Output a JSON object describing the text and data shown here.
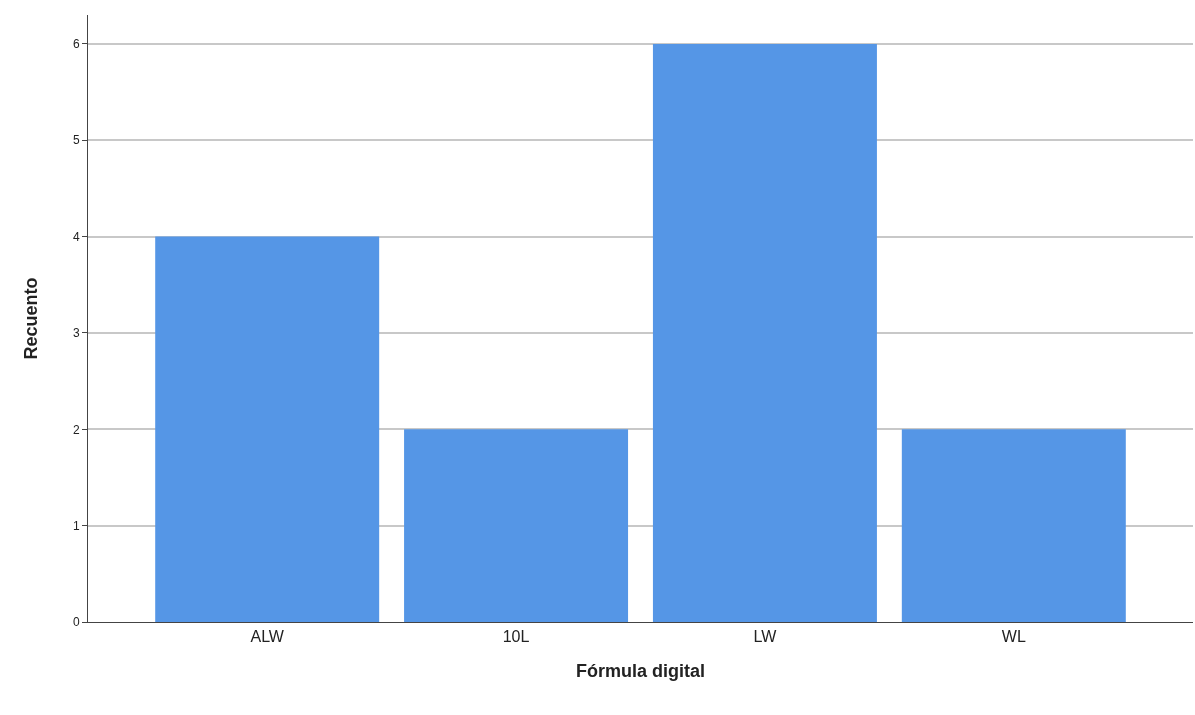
{
  "chart_data": {
    "type": "bar",
    "xlabel": "Fórmula digital",
    "ylabel": "Recuento",
    "categories": [
      "ALW",
      "10L",
      "LW",
      "WL"
    ],
    "values": [
      4,
      2,
      6,
      2
    ],
    "color": "#5596e6",
    "ylim": [
      0,
      6.3
    ],
    "yticks": [
      0,
      1,
      2,
      3,
      4,
      5,
      6
    ],
    "grid": "y"
  }
}
